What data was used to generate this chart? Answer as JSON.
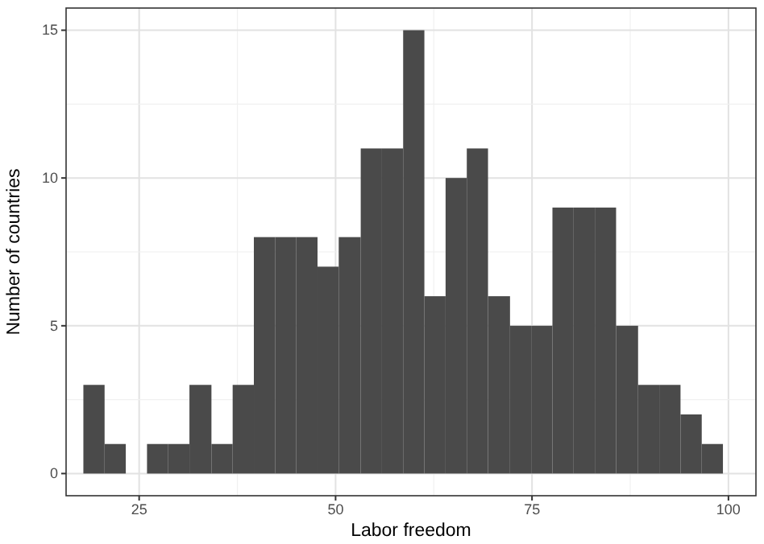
{
  "chart_data": {
    "type": "histogram",
    "xlabel": "Labor freedom",
    "ylabel": "Number of countries",
    "bins": [
      17.9,
      20.6,
      23.3,
      26.0,
      28.7,
      31.4,
      34.2,
      36.9,
      39.6,
      42.3,
      45.0,
      47.7,
      50.4,
      53.2,
      55.9,
      58.6,
      61.3,
      64.0,
      66.7,
      69.4,
      72.2,
      74.9,
      77.6,
      80.3,
      83.0,
      85.7,
      88.5,
      91.2,
      93.9,
      96.6,
      99.3
    ],
    "values": [
      3,
      1,
      0,
      1,
      1,
      3,
      1,
      3,
      8,
      8,
      8,
      7,
      8,
      11,
      11,
      15,
      6,
      10,
      11,
      6,
      5,
      5,
      9,
      9,
      9,
      5,
      3,
      3,
      2,
      1
    ],
    "color": "#4a4a4a",
    "xlim": [
      15.7,
      103.5
    ],
    "ylim": [
      -0.75,
      15.75
    ],
    "xticks": [
      25,
      50,
      75,
      100
    ],
    "yticks": [
      0,
      5,
      10,
      15
    ],
    "grid": true
  }
}
